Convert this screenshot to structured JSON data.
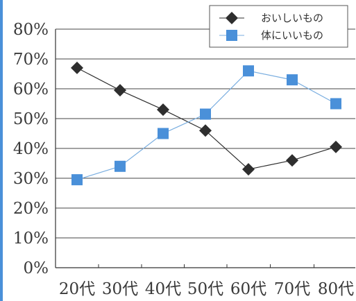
{
  "chart_data": {
    "type": "line",
    "title": "",
    "xlabel": "",
    "ylabel": "",
    "categories": [
      "20代",
      "30代",
      "40代",
      "50代",
      "60代",
      "70代",
      "80代"
    ],
    "y_ticks": [
      "0%",
      "10%",
      "20%",
      "30%",
      "40%",
      "50%",
      "60%",
      "70%",
      "80%"
    ],
    "ylim": [
      0,
      80
    ],
    "grid": "horizontal",
    "legend_position": "top-right",
    "series": [
      {
        "name": "おいしいもの",
        "marker": "diamond",
        "color": "#2e2e2e",
        "line_color": "#2e2e2e",
        "values": [
          67,
          59.5,
          53,
          46,
          33,
          36,
          40.5
        ]
      },
      {
        "name": "体にいいもの",
        "marker": "square",
        "color": "#4a90d9",
        "line_color": "#7aaee0",
        "values": [
          29.5,
          34,
          45,
          51.5,
          66,
          63,
          55
        ]
      }
    ]
  },
  "colors": {
    "left_border": "#4a90d9",
    "axis": "#333333",
    "grid": "#444444"
  }
}
